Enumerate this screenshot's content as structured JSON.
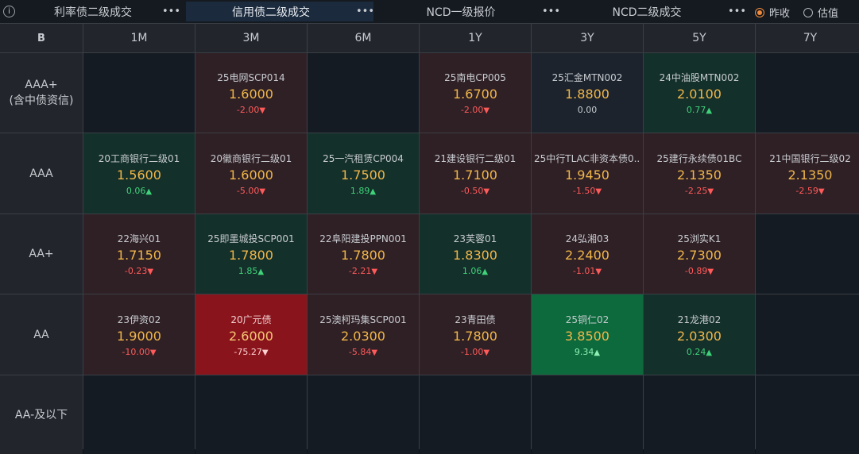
{
  "tabs": [
    {
      "label": "利率债二级成交",
      "more": "•••"
    },
    {
      "label": "信用债二级成交",
      "more": "•••"
    },
    {
      "label": "NCD一级报价",
      "more": "•••"
    },
    {
      "label": "NCD二级成交",
      "more": "•••"
    }
  ],
  "info_icon": "i",
  "radios": [
    {
      "label": "昨收",
      "selected": true
    },
    {
      "label": "估值",
      "selected": false
    }
  ],
  "corner_icon": "B",
  "columns": [
    "1M",
    "3M",
    "6M",
    "1Y",
    "3Y",
    "5Y",
    "7Y"
  ],
  "rows": [
    {
      "label": "AAA+\n(含中债资信)",
      "label1": "AAA+",
      "label2": "(含中债资信)"
    },
    {
      "label1": "AAA",
      "label2": ""
    },
    {
      "label1": "AA+",
      "label2": ""
    },
    {
      "label1": "AA",
      "label2": ""
    },
    {
      "label1": "AA-及以下",
      "label2": ""
    }
  ],
  "cells": [
    [
      null,
      {
        "name": "25电网SCP014",
        "price": "1.6000",
        "change": "-2.00",
        "dir": "down"
      },
      null,
      {
        "name": "25南电CP005",
        "price": "1.6700",
        "change": "-2.00",
        "dir": "down"
      },
      {
        "name": "25汇金MTN002",
        "price": "1.8800",
        "change": "0.00",
        "dir": "flat"
      },
      {
        "name": "24中油股MTN002",
        "price": "2.0100",
        "change": "0.77",
        "dir": "up"
      },
      null
    ],
    [
      {
        "name": "20工商银行二级01",
        "price": "1.5600",
        "change": "0.06",
        "dir": "up"
      },
      {
        "name": "20徽商银行二级01",
        "price": "1.6000",
        "change": "-5.00",
        "dir": "down"
      },
      {
        "name": "25一汽租赁CP004",
        "price": "1.7500",
        "change": "1.89",
        "dir": "up"
      },
      {
        "name": "21建设银行二级01",
        "price": "1.7100",
        "change": "-0.50",
        "dir": "down"
      },
      {
        "name": "25中行TLAC非资本债0...",
        "price": "1.9450",
        "change": "-1.50",
        "dir": "down"
      },
      {
        "name": "25建行永续债01BC",
        "price": "2.1350",
        "change": "-2.25",
        "dir": "down"
      },
      {
        "name": "21中国银行二级02",
        "price": "2.1350",
        "change": "-2.59",
        "dir": "down"
      }
    ],
    [
      {
        "name": "22海兴01",
        "price": "1.7150",
        "change": "-0.23",
        "dir": "down"
      },
      {
        "name": "25即墨城投SCP001",
        "price": "1.7800",
        "change": "1.85",
        "dir": "up"
      },
      {
        "name": "22阜阳建投PPN001",
        "price": "1.7800",
        "change": "-2.21",
        "dir": "down"
      },
      {
        "name": "23芙蓉01",
        "price": "1.8300",
        "change": "1.06",
        "dir": "up"
      },
      {
        "name": "24弘湘03",
        "price": "2.2400",
        "change": "-1.01",
        "dir": "down"
      },
      {
        "name": "25浏实K1",
        "price": "2.7300",
        "change": "-0.89",
        "dir": "down"
      },
      null
    ],
    [
      {
        "name": "23伊资02",
        "price": "1.9000",
        "change": "-10.00",
        "dir": "down"
      },
      {
        "name": "20广元债",
        "price": "2.6000",
        "change": "-75.27",
        "dir": "down"
      },
      {
        "name": "25澳柯玛集SCP001",
        "price": "2.0300",
        "change": "-5.84",
        "dir": "down"
      },
      {
        "name": "23青田债",
        "price": "1.7800",
        "change": "-1.00",
        "dir": "down"
      },
      {
        "name": "25铜仁02",
        "price": "3.8500",
        "change": "9.34",
        "dir": "up"
      },
      {
        "name": "21龙港02",
        "price": "2.0300",
        "change": "0.24",
        "dir": "up"
      },
      null
    ],
    [
      null,
      null,
      null,
      null,
      null,
      null,
      null
    ]
  ],
  "colors": {
    "accent": "#f28a3a",
    "price": "#f0b64a",
    "down": "#ff5a5a",
    "up": "#3fd27a"
  }
}
